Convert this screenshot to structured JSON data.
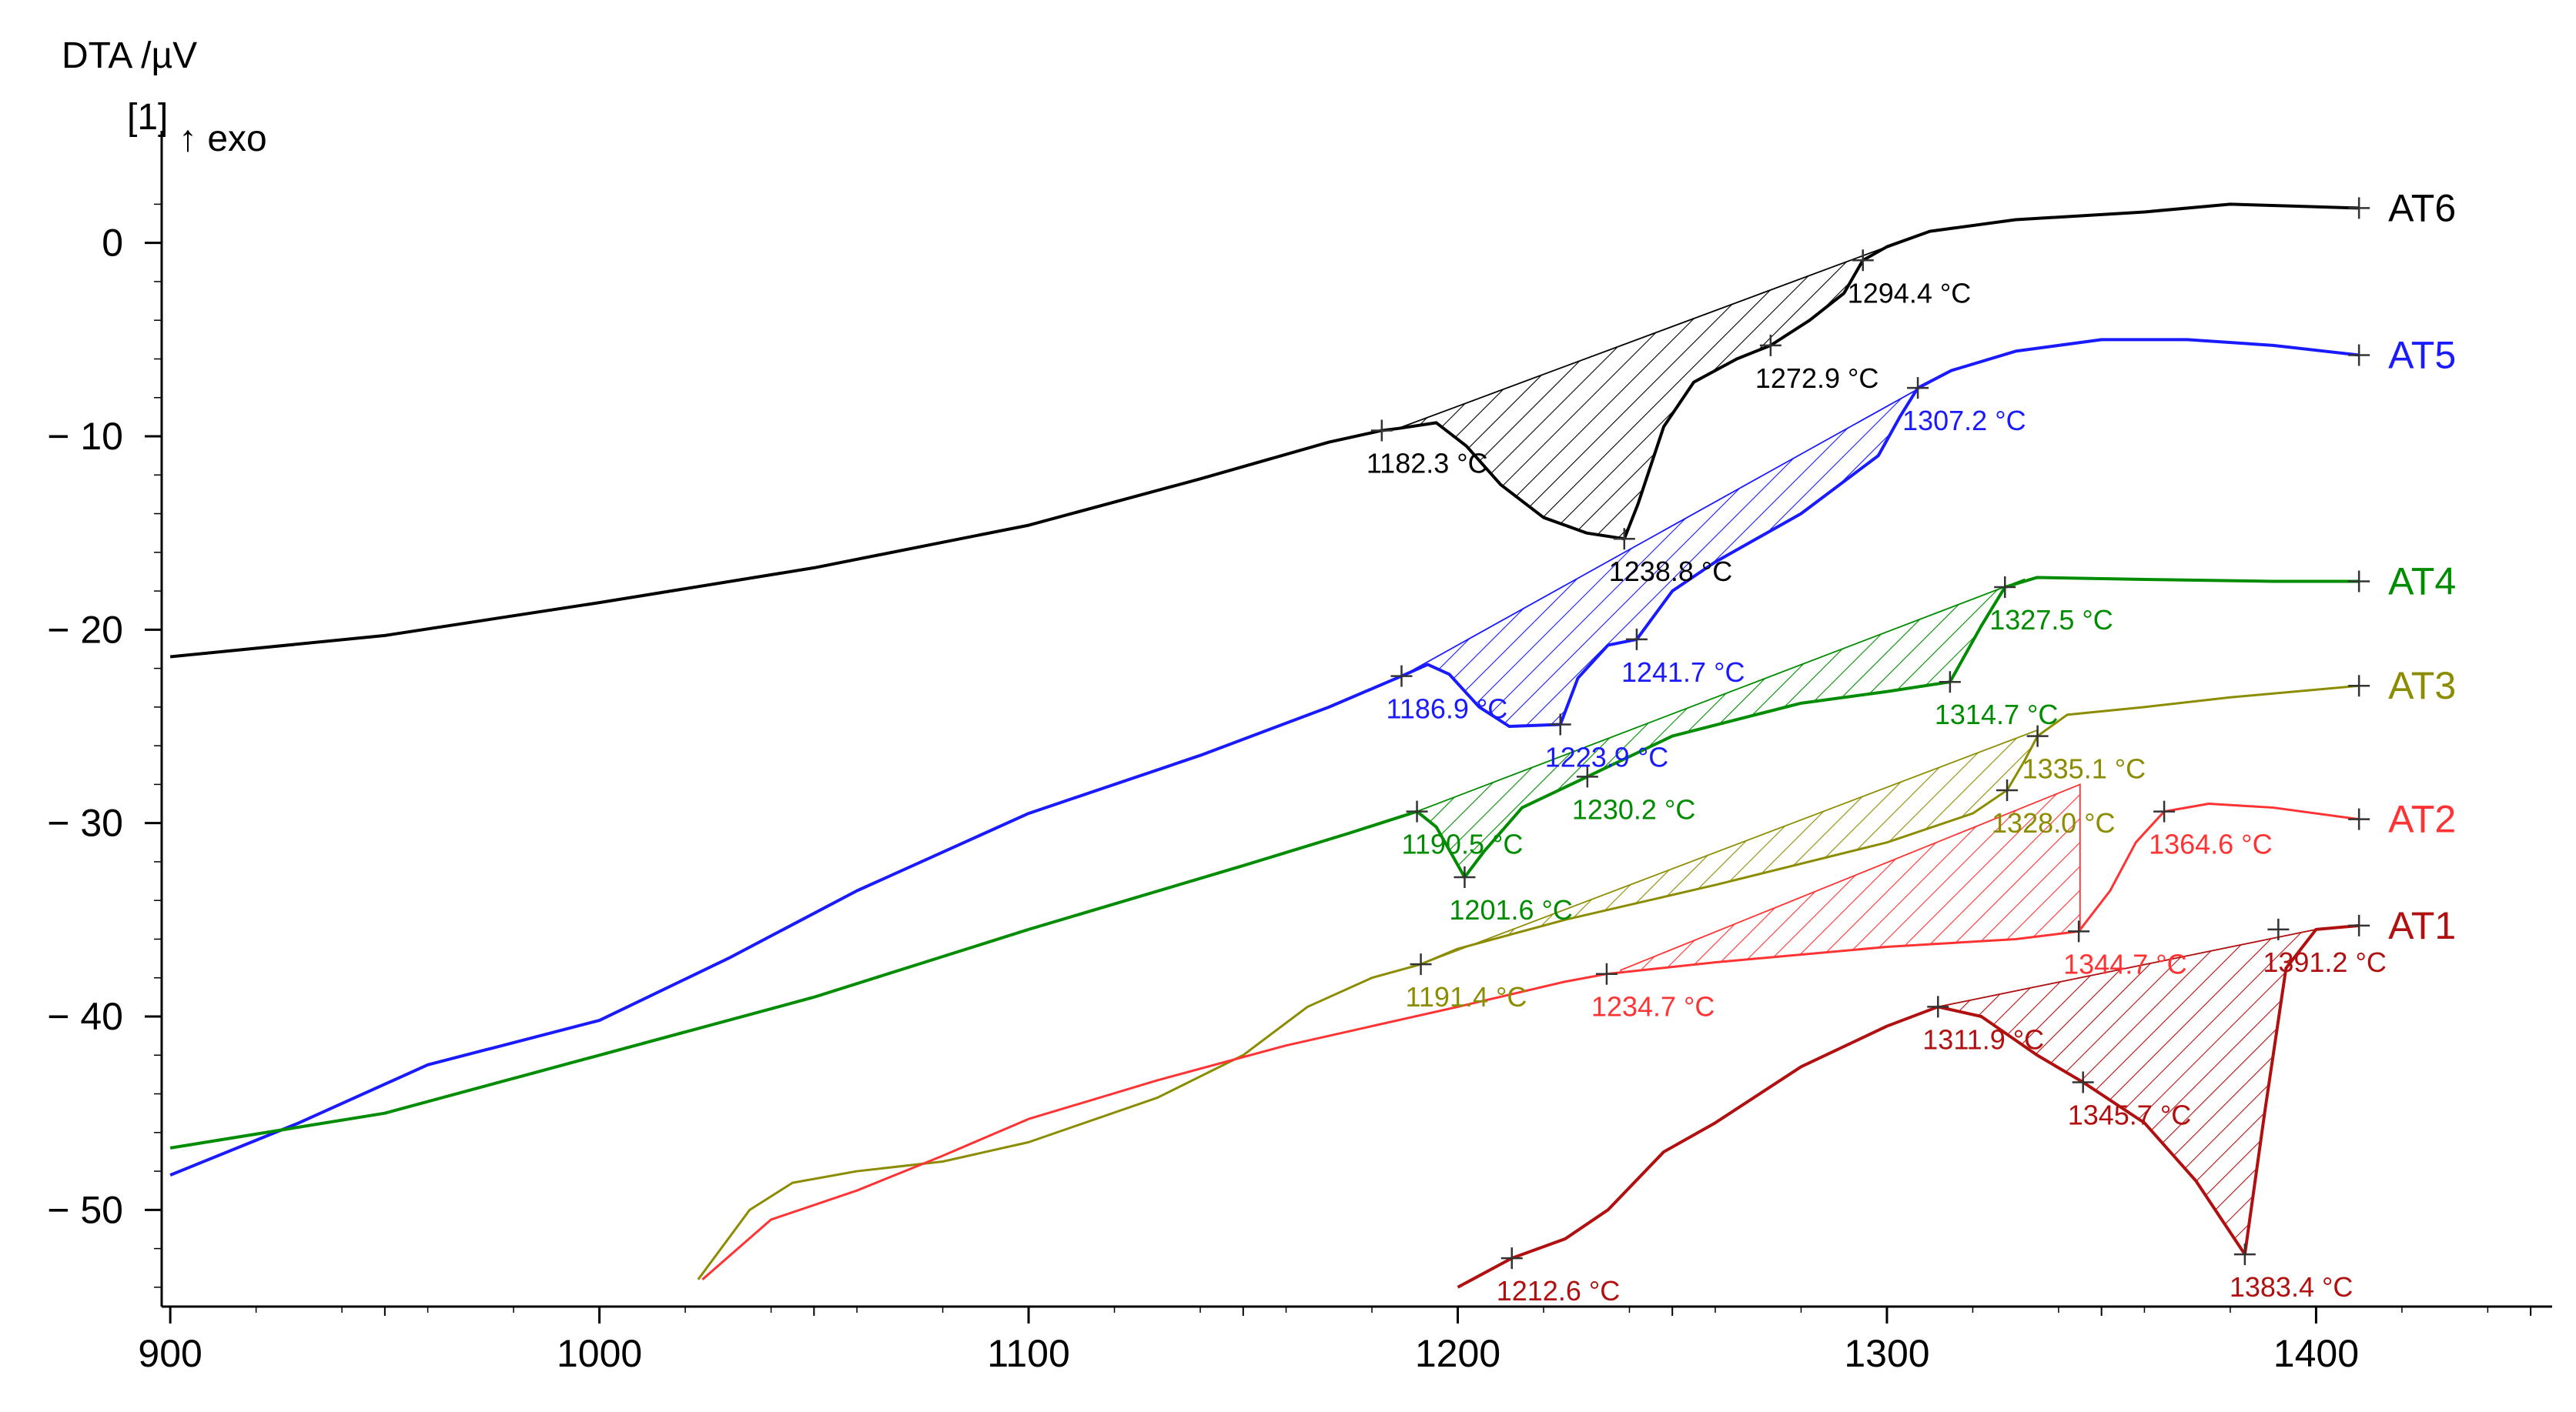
{
  "chart_data": {
    "type": "line",
    "title": "",
    "ylabel": "DTA /µV",
    "ylabel_line2": "[1]",
    "exo_label": "↑ exo",
    "xlabel": "",
    "xlim": [
      898,
      1455
    ],
    "ylim": [
      -55,
      5
    ],
    "x_ticks": [
      900,
      1000,
      1100,
      1200,
      1300,
      1400
    ],
    "y_ticks": [
      0,
      -10,
      -20,
      -30,
      -40,
      -50
    ],
    "y_tick_labels": [
      "0",
      "− 10",
      "− 20",
      "− 30",
      "− 40",
      "− 50"
    ],
    "grid": false,
    "series": [
      {
        "name": "AT6",
        "color": "#000000",
        "label": {
          "text": "AT6",
          "x": 1410,
          "y": 1.8
        },
        "points": [
          [
            900,
            -21.4
          ],
          [
            950,
            -20.3
          ],
          [
            1000,
            -18.6
          ],
          [
            1050,
            -16.8
          ],
          [
            1100,
            -14.6
          ],
          [
            1140,
            -12.2
          ],
          [
            1170,
            -10.3
          ],
          [
            1182.3,
            -9.7
          ],
          [
            1186,
            -9.6
          ],
          [
            1195,
            -9.3
          ],
          [
            1202,
            -10.5
          ],
          [
            1210,
            -12.5
          ],
          [
            1220,
            -14.2
          ],
          [
            1230,
            -15.0
          ],
          [
            1238.8,
            -15.3
          ],
          [
            1242,
            -13.5
          ],
          [
            1248,
            -9.5
          ],
          [
            1255,
            -7.2
          ],
          [
            1265,
            -6.0
          ],
          [
            1272.9,
            -5.3
          ],
          [
            1282,
            -4.0
          ],
          [
            1290,
            -2.6
          ],
          [
            1294.4,
            -0.9
          ],
          [
            1300,
            -0.2
          ],
          [
            1310,
            0.6
          ],
          [
            1330,
            1.2
          ],
          [
            1360,
            1.6
          ],
          [
            1380,
            2.0
          ],
          [
            1395,
            1.9
          ],
          [
            1410,
            1.8
          ]
        ],
        "shade_baseline": [
          [
            1186,
            -9.6
          ],
          [
            1300,
            -0.2
          ]
        ],
        "annotations": [
          {
            "text": "1182.3 °C",
            "x": 1182.3,
            "y": -9.7
          },
          {
            "text": "1238.8 °C",
            "x": 1238.8,
            "y": -15.3
          },
          {
            "text": "1272.9 °C",
            "x": 1272.9,
            "y": -5.3
          },
          {
            "text": "1294.4 °C",
            "x": 1294.4,
            "y": -0.9
          }
        ]
      },
      {
        "name": "AT5",
        "color": "#1a1aff",
        "label": {
          "text": "AT5",
          "x": 1410,
          "y": -5.8
        },
        "points": [
          [
            900,
            -48.2
          ],
          [
            930,
            -45.5
          ],
          [
            960,
            -42.5
          ],
          [
            1000,
            -40.2
          ],
          [
            1030,
            -37.0
          ],
          [
            1060,
            -33.5
          ],
          [
            1100,
            -29.5
          ],
          [
            1140,
            -26.5
          ],
          [
            1170,
            -24.0
          ],
          [
            1186.9,
            -22.4
          ],
          [
            1193,
            -21.8
          ],
          [
            1198,
            -22.3
          ],
          [
            1205,
            -24.0
          ],
          [
            1212,
            -25.0
          ],
          [
            1223.9,
            -24.9
          ],
          [
            1228,
            -22.5
          ],
          [
            1235,
            -20.8
          ],
          [
            1241.7,
            -20.5
          ],
          [
            1250,
            -18.0
          ],
          [
            1260,
            -16.5
          ],
          [
            1280,
            -14.0
          ],
          [
            1298,
            -11.0
          ],
          [
            1303,
            -9.0
          ],
          [
            1307.2,
            -7.5
          ],
          [
            1315,
            -6.6
          ],
          [
            1330,
            -5.6
          ],
          [
            1350,
            -5.0
          ],
          [
            1370,
            -5.0
          ],
          [
            1390,
            -5.3
          ],
          [
            1410,
            -5.8
          ]
        ],
        "shade_baseline": [
          [
            1187,
            -22.4
          ],
          [
            1315,
            -6.6
          ]
        ],
        "annotations": [
          {
            "text": "1186.9 °C",
            "x": 1186.9,
            "y": -22.4
          },
          {
            "text": "1223.9 °C",
            "x": 1223.9,
            "y": -24.9
          },
          {
            "text": "1241.7 °C",
            "x": 1241.7,
            "y": -20.5
          },
          {
            "text": "1307.2 °C",
            "x": 1307.2,
            "y": -7.5
          }
        ]
      },
      {
        "name": "AT4",
        "color": "#008c00",
        "label": {
          "text": "AT4",
          "x": 1410,
          "y": -17.5
        },
        "points": [
          [
            900,
            -46.8
          ],
          [
            950,
            -45.0
          ],
          [
            1000,
            -42.0
          ],
          [
            1050,
            -39.0
          ],
          [
            1100,
            -35.5
          ],
          [
            1150,
            -32.2
          ],
          [
            1175,
            -30.5
          ],
          [
            1190.5,
            -29.4
          ],
          [
            1195,
            -30.2
          ],
          [
            1201.6,
            -32.8
          ],
          [
            1206,
            -31.5
          ],
          [
            1215,
            -29.2
          ],
          [
            1230.2,
            -27.6
          ],
          [
            1250,
            -25.5
          ],
          [
            1280,
            -23.8
          ],
          [
            1300,
            -23.2
          ],
          [
            1314.7,
            -22.7
          ],
          [
            1322,
            -19.8
          ],
          [
            1327.5,
            -17.8
          ],
          [
            1335,
            -17.3
          ],
          [
            1360,
            -17.4
          ],
          [
            1390,
            -17.5
          ],
          [
            1410,
            -17.5
          ]
        ],
        "shade_baseline": [
          [
            1190.5,
            -29.4
          ],
          [
            1332,
            -17.4
          ]
        ],
        "annotations": [
          {
            "text": "1190.5 °C",
            "x": 1190.5,
            "y": -29.4
          },
          {
            "text": "1201.6 °C",
            "x": 1201.6,
            "y": -32.8
          },
          {
            "text": "1230.2 °C",
            "x": 1230.2,
            "y": -27.6
          },
          {
            "text": "1314.7 °C",
            "x": 1314.7,
            "y": -22.7
          },
          {
            "text": "1327.5 °C",
            "x": 1327.5,
            "y": -17.8
          }
        ]
      },
      {
        "name": "AT3",
        "color": "#8c8c00",
        "label": {
          "text": "AT3",
          "x": 1410,
          "y": -22.9
        },
        "points": [
          [
            1023,
            -53.6
          ],
          [
            1035,
            -50.0
          ],
          [
            1045,
            -48.6
          ],
          [
            1060,
            -48.0
          ],
          [
            1080,
            -47.5
          ],
          [
            1100,
            -46.5
          ],
          [
            1130,
            -44.2
          ],
          [
            1150,
            -42.0
          ],
          [
            1165,
            -39.5
          ],
          [
            1180,
            -38.0
          ],
          [
            1191.4,
            -37.3
          ],
          [
            1200,
            -36.5
          ],
          [
            1225,
            -35.0
          ],
          [
            1260,
            -33.2
          ],
          [
            1300,
            -31.0
          ],
          [
            1320,
            -29.5
          ],
          [
            1328.0,
            -28.3
          ],
          [
            1332,
            -26.8
          ],
          [
            1335.1,
            -25.5
          ],
          [
            1342,
            -24.4
          ],
          [
            1360,
            -24.0
          ],
          [
            1380,
            -23.5
          ],
          [
            1410,
            -22.9
          ]
        ],
        "shade_baseline": [
          [
            1191.4,
            -37.3
          ],
          [
            1335,
            -25.2
          ]
        ],
        "annotations": [
          {
            "text": "1191.4 °C",
            "x": 1191.4,
            "y": -37.3
          },
          {
            "text": "1328.0 °C",
            "x": 1328.0,
            "y": -28.3
          },
          {
            "text": "1335.1 °C",
            "x": 1335.1,
            "y": -25.5
          }
        ]
      },
      {
        "name": "AT2",
        "color": "#ff3333",
        "label": {
          "text": "AT2",
          "x": 1410,
          "y": -29.8
        },
        "points": [
          [
            1024,
            -53.6
          ],
          [
            1040,
            -50.5
          ],
          [
            1060,
            -49.0
          ],
          [
            1080,
            -47.2
          ],
          [
            1100,
            -45.3
          ],
          [
            1130,
            -43.3
          ],
          [
            1160,
            -41.5
          ],
          [
            1200,
            -39.5
          ],
          [
            1225,
            -38.2
          ],
          [
            1234.7,
            -37.8
          ],
          [
            1260,
            -37.2
          ],
          [
            1300,
            -36.4
          ],
          [
            1330,
            -36.0
          ],
          [
            1344.7,
            -35.6
          ],
          [
            1352,
            -33.5
          ],
          [
            1358,
            -31.0
          ],
          [
            1364.6,
            -29.4
          ],
          [
            1375,
            -29.0
          ],
          [
            1390,
            -29.2
          ],
          [
            1410,
            -29.8
          ]
        ],
        "shade_baseline": [
          [
            1238,
            -37.6
          ],
          [
            1345,
            -28.0
          ]
        ],
        "annotations": [
          {
            "text": "1234.7 °C",
            "x": 1234.7,
            "y": -37.8
          },
          {
            "text": "1344.7 °C",
            "x": 1344.7,
            "y": -35.6
          },
          {
            "text": "1364.6 °C",
            "x": 1364.6,
            "y": -29.4
          }
        ]
      },
      {
        "name": "AT1",
        "color": "#b01010",
        "label": {
          "text": "AT1",
          "x": 1410,
          "y": -35.3
        },
        "points": [
          [
            1200,
            -54.0
          ],
          [
            1212.6,
            -52.5
          ],
          [
            1225,
            -51.5
          ],
          [
            1235,
            -50.0
          ],
          [
            1248,
            -47.0
          ],
          [
            1260,
            -45.5
          ],
          [
            1280,
            -42.6
          ],
          [
            1300,
            -40.5
          ],
          [
            1311.9,
            -39.5
          ],
          [
            1322,
            -40.0
          ],
          [
            1335,
            -42.0
          ],
          [
            1345.7,
            -43.4
          ],
          [
            1360,
            -45.5
          ],
          [
            1372,
            -48.5
          ],
          [
            1383.4,
            -52.3
          ],
          [
            1388,
            -45.0
          ],
          [
            1393,
            -37.5
          ],
          [
            1400,
            -35.5
          ],
          [
            1410,
            -35.3
          ]
        ],
        "shade_baseline": [
          [
            1311.9,
            -39.5
          ],
          [
            1400,
            -35.5
          ]
        ],
        "annotations": [
          {
            "text": "1212.6 °C",
            "x": 1212.6,
            "y": -52.5
          },
          {
            "text": "1311.9 °C",
            "x": 1311.9,
            "y": -39.5
          },
          {
            "text": "1345.7 °C",
            "x": 1345.7,
            "y": -43.4
          },
          {
            "text": "1383.4 °C",
            "x": 1383.4,
            "y": -52.3
          },
          {
            "text": "1391.2 °C",
            "x": 1391.2,
            "y": -35.5
          }
        ]
      }
    ]
  }
}
